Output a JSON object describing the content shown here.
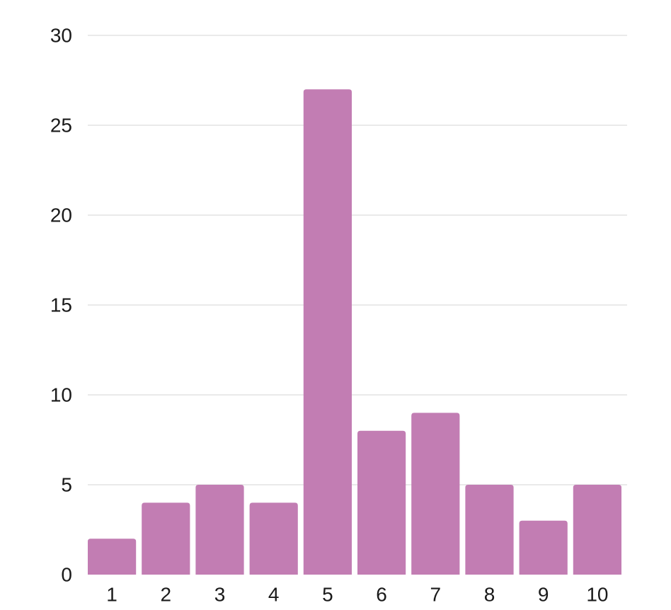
{
  "chart_data": {
    "type": "bar",
    "categories": [
      "1",
      "2",
      "3",
      "4",
      "5",
      "6",
      "7",
      "8",
      "9",
      "10"
    ],
    "values": [
      2,
      4,
      5,
      4,
      27,
      8,
      9,
      5,
      3,
      5
    ],
    "title": "",
    "xlabel": "",
    "ylabel": "",
    "ylim": [
      0,
      30
    ],
    "yticks": [
      0,
      5,
      10,
      15,
      20,
      25,
      30
    ],
    "grid": true,
    "legend": "none",
    "bar_color": "#c27db3",
    "grid_color": "#e3e3e3",
    "text_color": "#1a1a1a"
  }
}
